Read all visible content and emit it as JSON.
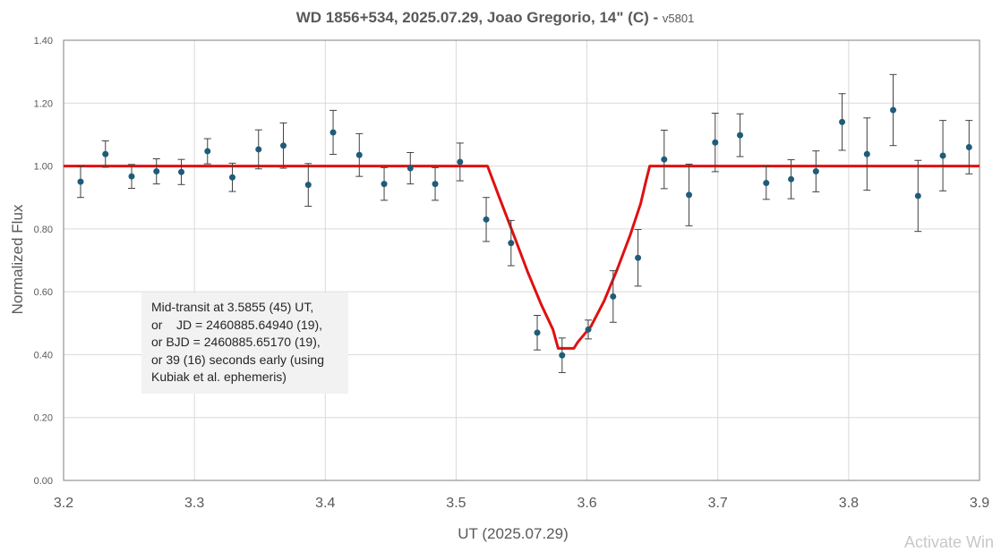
{
  "chart_data": {
    "type": "scatter",
    "title_main": "WD 1856+534, 2025.07.29, Joao Gregorio, 14\" (C) - ",
    "title_version": "v5801",
    "xlabel": "UT (2025.07.29)",
    "ylabel": "Normalized Flux",
    "xlim": [
      3.2,
      3.9
    ],
    "ylim": [
      0.0,
      1.4
    ],
    "x_ticks": [
      "3.2",
      "3.3",
      "3.4",
      "3.5",
      "3.6",
      "3.7",
      "3.8",
      "3.9"
    ],
    "y_ticks": [
      "0.00",
      "0.20",
      "0.40",
      "0.60",
      "0.80",
      "1.00",
      "1.20",
      "1.40"
    ],
    "grid": true,
    "legend": "none",
    "marker_color": "#1f5c7a",
    "errorbar_color": "#404040",
    "model_color": "#e01010",
    "series": [
      {
        "type": "scatter",
        "x": [
          3.213,
          3.232,
          3.252,
          3.271,
          3.29,
          3.31,
          3.329,
          3.349,
          3.368,
          3.387,
          3.406,
          3.426,
          3.445,
          3.465,
          3.484,
          3.503,
          3.523,
          3.542,
          3.562,
          3.581,
          3.601,
          3.62,
          3.639,
          3.659,
          3.678,
          3.698,
          3.717,
          3.737,
          3.756,
          3.775,
          3.795,
          3.814,
          3.834,
          3.853,
          3.872,
          3.892
        ],
        "y": [
          0.95,
          1.038,
          0.967,
          0.983,
          0.981,
          1.047,
          0.964,
          1.053,
          1.065,
          0.94,
          1.107,
          1.035,
          0.943,
          0.993,
          0.943,
          1.013,
          0.83,
          0.755,
          0.47,
          0.398,
          0.48,
          0.585,
          0.708,
          1.021,
          0.908,
          1.075,
          1.098,
          0.946,
          0.958,
          0.983,
          1.14,
          1.038,
          1.178,
          0.905,
          1.033,
          1.06
        ],
        "yerr": [
          0.05,
          0.042,
          0.038,
          0.04,
          0.04,
          0.04,
          0.045,
          0.062,
          0.072,
          0.068,
          0.07,
          0.068,
          0.052,
          0.05,
          0.052,
          0.06,
          0.07,
          0.072,
          0.055,
          0.055,
          0.03,
          0.082,
          0.09,
          0.093,
          0.098,
          0.093,
          0.068,
          0.052,
          0.062,
          0.065,
          0.09,
          0.115,
          0.113,
          0.113,
          0.112,
          0.085
        ]
      },
      {
        "type": "line",
        "x": [
          3.2,
          3.524,
          3.533,
          3.545,
          3.555,
          3.565,
          3.574,
          3.578,
          3.59,
          3.593,
          3.603,
          3.613,
          3.623,
          3.633,
          3.641,
          3.645,
          3.648,
          3.9
        ],
        "y": [
          1.0,
          1.0,
          0.9,
          0.77,
          0.66,
          0.56,
          0.48,
          0.42,
          0.42,
          0.44,
          0.49,
          0.57,
          0.67,
          0.78,
          0.88,
          0.95,
          1.0,
          1.0
        ]
      }
    ]
  },
  "annotation": {
    "text": "Mid-transit at 3.5855 (45) UT,\nor    JD = 2460885.64940 (19),\nor BJD = 2460885.65170 (19),\nor 39 (16) seconds early (using\nKubiak et al. ephemeris)"
  },
  "watermark": "Activate Win"
}
